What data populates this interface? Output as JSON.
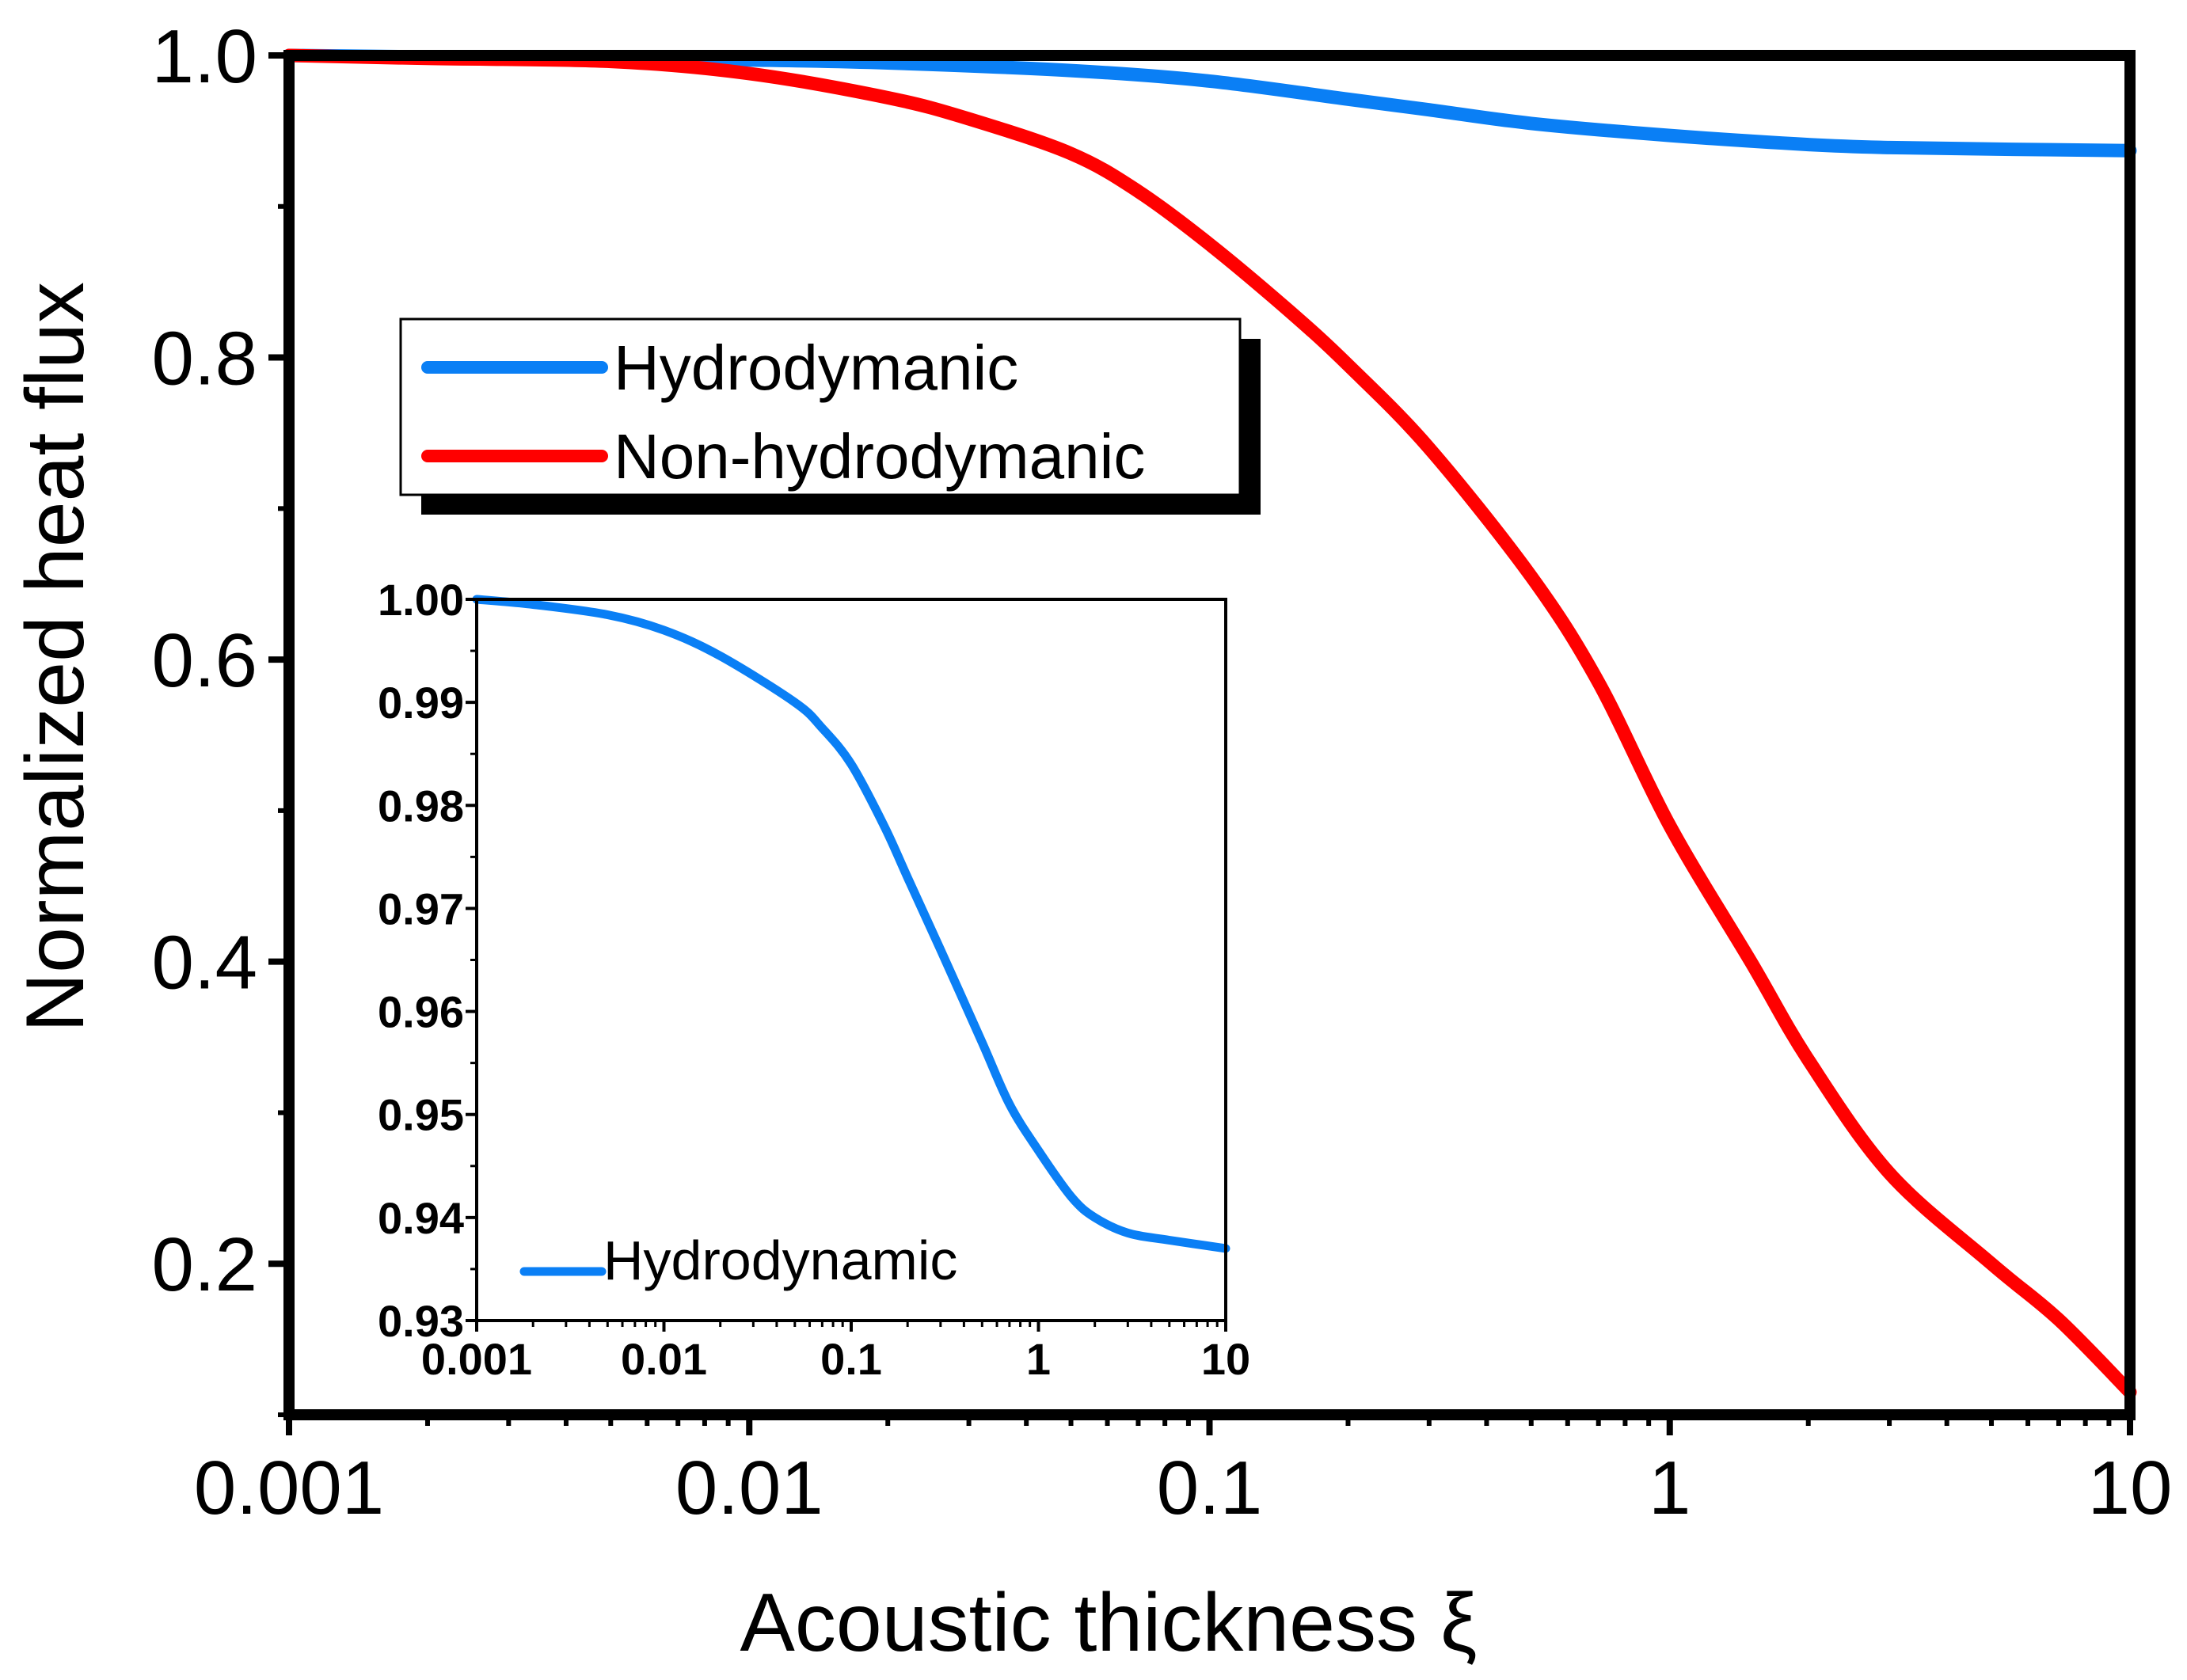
{
  "chart_data": [
    {
      "id": "main",
      "type": "line",
      "title": "",
      "xlabel": "Acoustic thickness ξ",
      "ylabel": "Normalized heat flux",
      "xscale": "log",
      "xlim": [
        0.001,
        10
      ],
      "ylim": [
        0.1,
        1.0
      ],
      "xticks": [
        0.001,
        0.01,
        0.1,
        1,
        10
      ],
      "xtick_labels": [
        "0.001",
        "0.01",
        "0.1",
        "1",
        "10"
      ],
      "yticks": [
        0.2,
        0.4,
        0.6,
        0.8,
        1.0
      ],
      "ytick_labels": [
        "0.2",
        "0.4",
        "0.6",
        "0.8",
        "1.0"
      ],
      "grid": false,
      "legend_position": "upper-left",
      "series": [
        {
          "name": "Hydrodymanic",
          "color": "#0a7ff5",
          "x": [
            0.001,
            0.002,
            0.005,
            0.01,
            0.02,
            0.05,
            0.1,
            0.2,
            0.3,
            0.5,
            1,
            2,
            3,
            5,
            10
          ],
          "y": [
            1.0,
            0.999,
            0.998,
            0.997,
            0.995,
            0.99,
            0.983,
            0.971,
            0.964,
            0.955,
            0.947,
            0.941,
            0.939,
            0.938,
            0.937
          ]
        },
        {
          "name": "Non-hydrodymanic",
          "color": "#ff0000",
          "x": [
            0.001,
            0.002,
            0.005,
            0.01,
            0.02,
            0.03,
            0.05,
            0.07,
            0.1,
            0.15,
            0.2,
            0.3,
            0.5,
            0.7,
            1,
            1.5,
            2,
            3,
            5,
            7,
            10
          ],
          "y": [
            1.0,
            0.998,
            0.996,
            0.988,
            0.972,
            0.958,
            0.935,
            0.91,
            0.875,
            0.83,
            0.795,
            0.74,
            0.655,
            0.585,
            0.49,
            0.4,
            0.335,
            0.26,
            0.2,
            0.163,
            0.115
          ]
        }
      ]
    },
    {
      "id": "inset",
      "type": "line",
      "title": "",
      "xlabel": "",
      "ylabel": "",
      "xscale": "log",
      "xlim": [
        0.001,
        10
      ],
      "ylim": [
        0.93,
        1.0
      ],
      "xticks": [
        0.001,
        0.01,
        0.1,
        1,
        10
      ],
      "xtick_labels": [
        "0.001",
        "0.01",
        "0.1",
        "1",
        "10"
      ],
      "yticks": [
        0.93,
        0.94,
        0.95,
        0.96,
        0.97,
        0.98,
        0.99,
        1.0
      ],
      "ytick_labels": [
        "0.93",
        "0.94",
        "0.95",
        "0.96",
        "0.97",
        "0.98",
        "0.99",
        "1.00"
      ],
      "grid": false,
      "legend_position": "lower-left",
      "series": [
        {
          "name": "Hydrodynamic",
          "color": "#0a7ff5",
          "x": [
            0.001,
            0.002,
            0.005,
            0.01,
            0.02,
            0.05,
            0.07,
            0.1,
            0.15,
            0.2,
            0.3,
            0.5,
            0.7,
            1,
            1.5,
            2,
            3,
            5,
            10
          ],
          "y": [
            1.0,
            0.9995,
            0.9985,
            0.997,
            0.9945,
            0.99,
            0.9875,
            0.984,
            0.978,
            0.973,
            0.966,
            0.957,
            0.951,
            0.9465,
            0.942,
            0.94,
            0.9385,
            0.9378,
            0.937
          ]
        }
      ]
    }
  ]
}
